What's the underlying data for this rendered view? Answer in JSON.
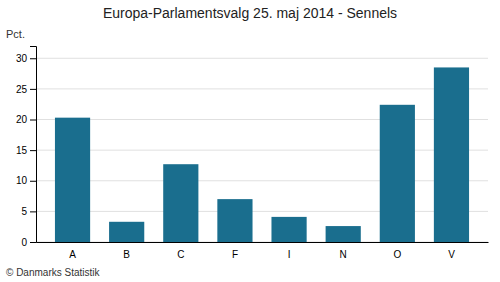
{
  "chart_data": {
    "type": "bar",
    "title": "Europa-Parlamentsvalg 25. maj 2014 - Sennels",
    "ylabel": "Pct.",
    "annotations": [
      "© Danmarks Statistik"
    ],
    "categories": [
      "A",
      "B",
      "C",
      "F",
      "I",
      "N",
      "O",
      "V"
    ],
    "values": [
      20.3,
      3.3,
      12.7,
      7.0,
      4.1,
      2.6,
      22.4,
      28.5
    ],
    "color": "#1a6e8e",
    "ylim": [
      0,
      32
    ],
    "yticks": [
      0,
      5,
      10,
      15,
      20,
      25,
      30
    ],
    "grid": true
  }
}
